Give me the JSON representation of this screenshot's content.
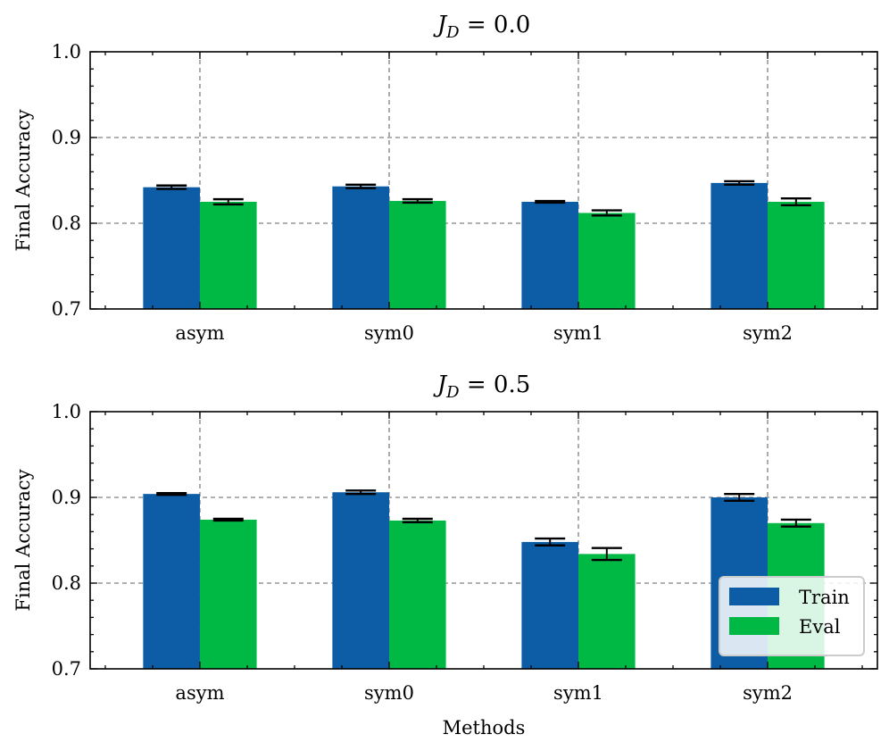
{
  "colors": {
    "train": "#0C5DA5",
    "eval": "#00B945",
    "grid": "#808080",
    "error": "#000000"
  },
  "chart_data": [
    {
      "type": "bar",
      "title_symbol": "J",
      "title_subscript": "D",
      "title_rest": " = 0.0",
      "xlabel": "",
      "ylabel": "Final Accuracy",
      "ylim": [
        0.7,
        1.0
      ],
      "yticks": [
        "0.7",
        "0.8",
        "0.9",
        "1.0"
      ],
      "categories": [
        "asym",
        "sym0",
        "sym1",
        "sym2"
      ],
      "grid": true,
      "legend": false,
      "series": [
        {
          "name": "Train",
          "values": [
            0.842,
            0.843,
            0.825,
            0.847
          ],
          "errors": [
            0.002,
            0.002,
            0.001,
            0.002
          ]
        },
        {
          "name": "Eval",
          "values": [
            0.825,
            0.826,
            0.812,
            0.825
          ],
          "errors": [
            0.003,
            0.002,
            0.003,
            0.004
          ]
        }
      ]
    },
    {
      "type": "bar",
      "title_symbol": "J",
      "title_subscript": "D",
      "title_rest": " = 0.5",
      "xlabel": "Methods",
      "ylabel": "Final Accuracy",
      "ylim": [
        0.7,
        1.0
      ],
      "yticks": [
        "0.7",
        "0.8",
        "0.9",
        "1.0"
      ],
      "categories": [
        "asym",
        "sym0",
        "sym1",
        "sym2"
      ],
      "grid": true,
      "legend": true,
      "legend_position": "lower-right",
      "series": [
        {
          "name": "Train",
          "values": [
            0.904,
            0.906,
            0.848,
            0.9
          ],
          "errors": [
            0.001,
            0.002,
            0.004,
            0.004
          ]
        },
        {
          "name": "Eval",
          "values": [
            0.874,
            0.873,
            0.834,
            0.87
          ],
          "errors": [
            0.001,
            0.002,
            0.007,
            0.004
          ]
        }
      ]
    }
  ]
}
